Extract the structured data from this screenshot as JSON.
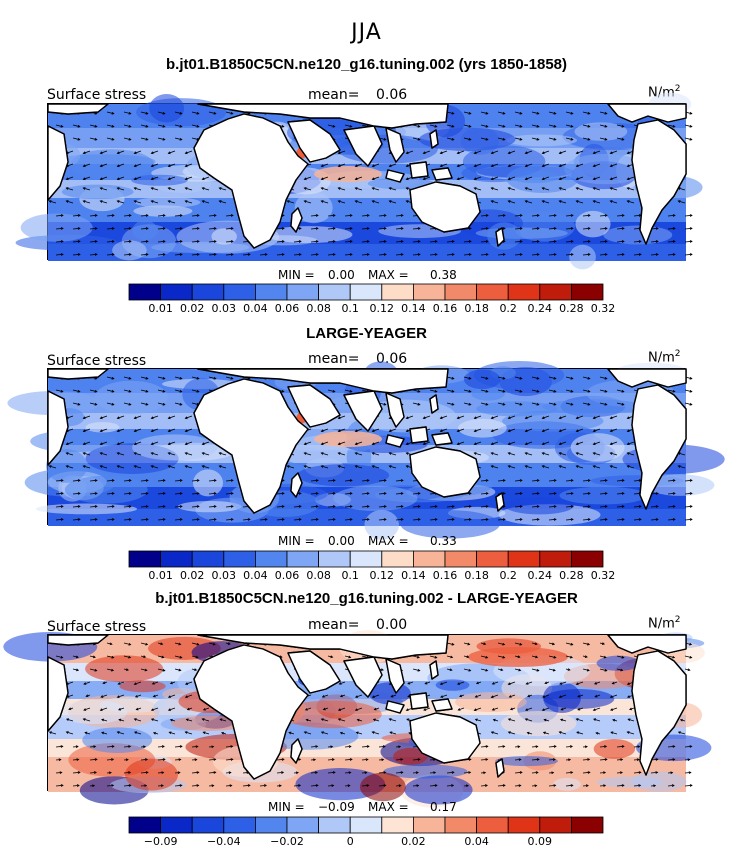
{
  "season": "JJA",
  "panels": [
    {
      "title": "b.jt01.B1850C5CN.ne120_g16.tuning.002 (yrs 1850-1858)",
      "variable_label": "Surface stress",
      "mean_label": "mean=",
      "mean_value": "0.06",
      "units": "N/m",
      "units_sup": "2",
      "min_label": "MIN =",
      "min_value": "0.00",
      "max_label": "MAX =",
      "max_value": "0.38",
      "colorbar": {
        "colors": [
          "#00008b",
          "#0a28c8",
          "#1a46dc",
          "#2d60e6",
          "#5286ee",
          "#7ea6f4",
          "#b0c8f8",
          "#dae6fc",
          "#fddcc8",
          "#f8b498",
          "#f28a6a",
          "#ec5e3e",
          "#e03418",
          "#c01c0c",
          "#8b0000"
        ],
        "tick_labels": [
          "0.01",
          "0.02",
          "0.03",
          "0.04",
          "0.06",
          "0.08",
          "0.1",
          "0.12",
          "0.14",
          "0.16",
          "0.18",
          "0.2",
          "0.24",
          "0.28",
          "0.32"
        ]
      }
    },
    {
      "title": "LARGE-YEAGER",
      "variable_label": "Surface stress",
      "mean_label": "mean=",
      "mean_value": "0.06",
      "units": "N/m",
      "units_sup": "2",
      "min_label": "MIN =",
      "min_value": "0.00",
      "max_label": "MAX =",
      "max_value": "0.33",
      "colorbar": {
        "colors": [
          "#00008b",
          "#0a28c8",
          "#1a46dc",
          "#2d60e6",
          "#5286ee",
          "#7ea6f4",
          "#b0c8f8",
          "#dae6fc",
          "#fddcc8",
          "#f8b498",
          "#f28a6a",
          "#ec5e3e",
          "#e03418",
          "#c01c0c",
          "#8b0000"
        ],
        "tick_labels": [
          "0.01",
          "0.02",
          "0.03",
          "0.04",
          "0.06",
          "0.08",
          "0.1",
          "0.12",
          "0.14",
          "0.16",
          "0.18",
          "0.2",
          "0.24",
          "0.28",
          "0.32"
        ]
      }
    },
    {
      "title": "b.jt01.B1850C5CN.ne120_g16.tuning.002 - LARGE-YEAGER",
      "variable_label": "Surface stress",
      "mean_label": "mean=",
      "mean_value": "0.00",
      "units": "N/m",
      "units_sup": "2",
      "min_label": "MIN =",
      "min_value": "−0.09",
      "max_label": "MAX =",
      "max_value": "0.17",
      "colorbar": {
        "colors": [
          "#00008b",
          "#0a28c8",
          "#1a46dc",
          "#2d60e6",
          "#5286ee",
          "#7ea6f4",
          "#b0c8f8",
          "#dae6fc",
          "#fde4d4",
          "#f8b498",
          "#f28a6a",
          "#ec5e3e",
          "#e03418",
          "#c01c0c",
          "#8b0000"
        ],
        "tick_labels": [
          "−0.09",
          "",
          "−0.04",
          "",
          "−0.02",
          "",
          "0",
          "",
          "0.02",
          "",
          "0.04",
          "",
          "0.09",
          ""
        ]
      }
    }
  ],
  "colors": {
    "land": "#ffffff",
    "coast": "#000000",
    "arrow": "#000000"
  }
}
